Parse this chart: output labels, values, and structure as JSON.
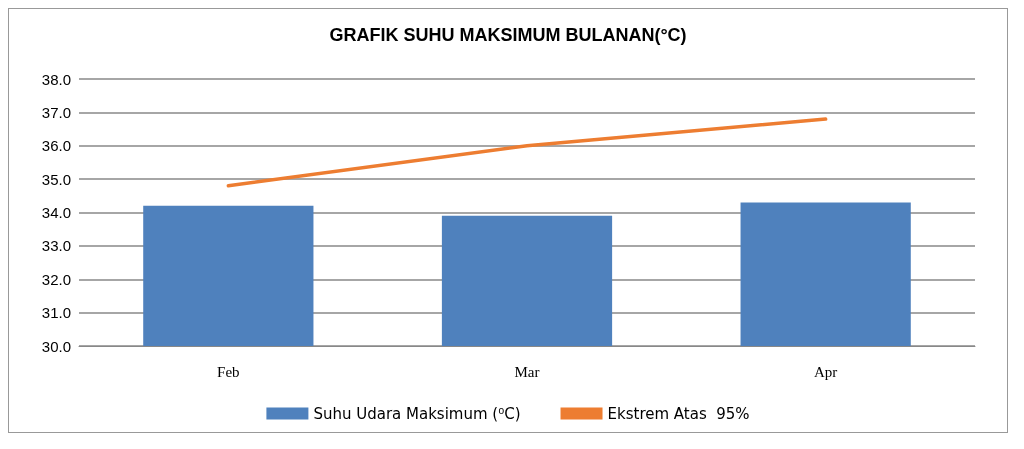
{
  "chart_data": {
    "type": "bar",
    "title": "GRAFIK SUHU MAKSIMUM BULANAN(°C)",
    "categories": [
      "Feb",
      "Mar",
      "Apr"
    ],
    "series": [
      {
        "name": "Suhu Udara Maksimum (⁰C)",
        "color": "#4f81bd",
        "values": [
          34.2,
          33.9,
          34.3
        ]
      },
      {
        "name": "Ekstrem Atas  95%",
        "type": "line",
        "color": "#ed7d31",
        "values": [
          34.8,
          36.0,
          36.8
        ]
      }
    ],
    "ylim": [
      30,
      38
    ],
    "yticks": [
      {
        "value": 30,
        "label": "30.0"
      },
      {
        "value": 31,
        "label": "31.0"
      },
      {
        "value": 32,
        "label": "32.0"
      },
      {
        "value": 33,
        "label": "33.0"
      },
      {
        "value": 34,
        "label": "34.0"
      },
      {
        "value": 35,
        "label": "35.0"
      },
      {
        "value": 36,
        "label": "36.0"
      },
      {
        "value": 37,
        "label": "37.0"
      },
      {
        "value": 38,
        "label": "38.0"
      }
    ],
    "grid": "y",
    "legend": "bottom",
    "marker": "none"
  }
}
